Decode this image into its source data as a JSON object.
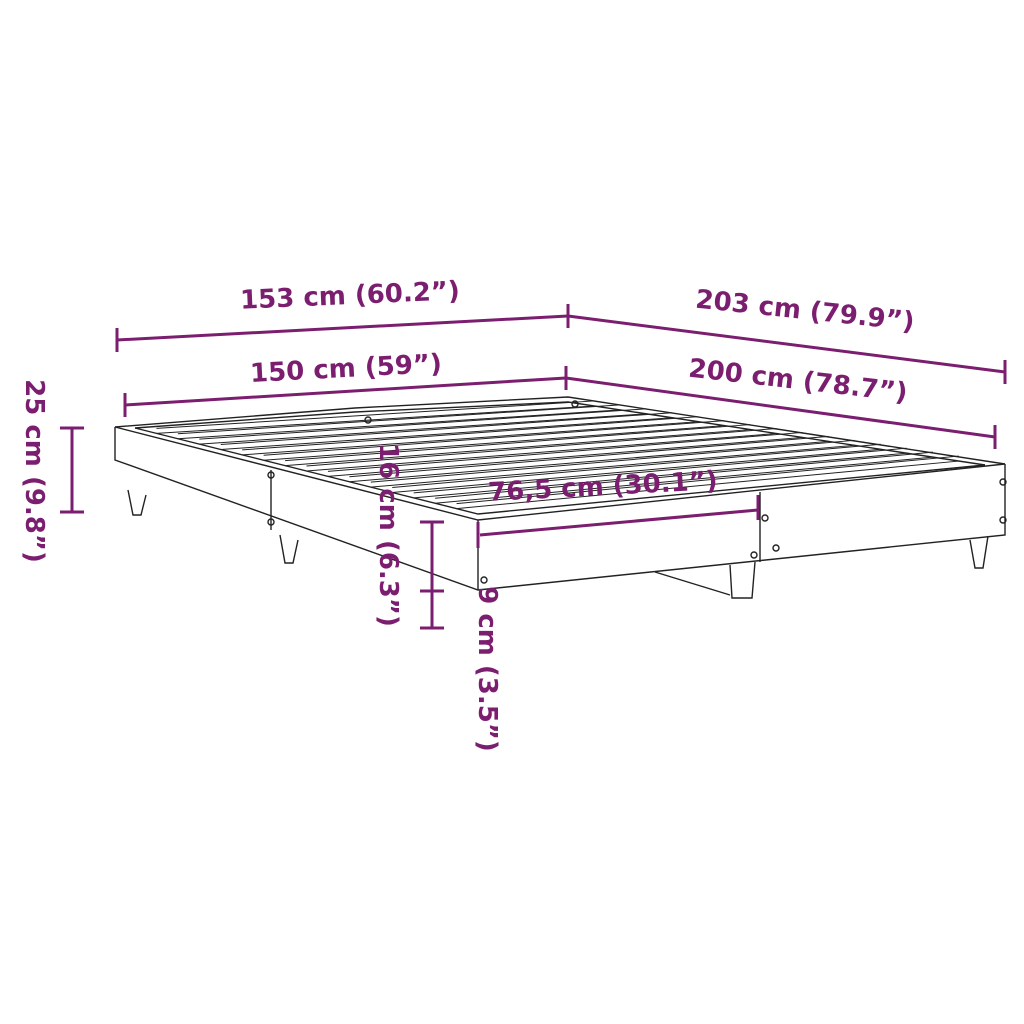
{
  "accent_color": "#7b1e6f",
  "dimensions": {
    "outer_width": "153 cm (60.2”)",
    "outer_length": "203 cm (79.9”)",
    "inner_width": "150 cm (59”)",
    "inner_length": "200 cm (78.7”)",
    "total_height": "25 cm (9.8”)",
    "frame_height": "16 cm (6.3”)",
    "leg_clearance": "9 cm (3.5”)",
    "half_width": "76,5 cm (30.1”)"
  }
}
